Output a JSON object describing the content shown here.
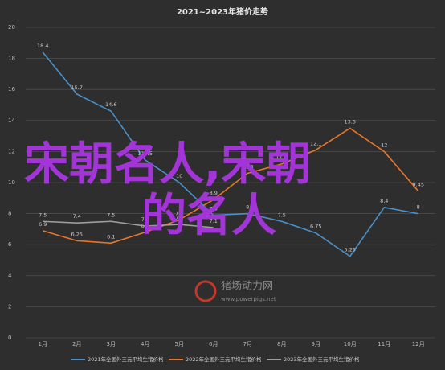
{
  "chart_data": {
    "type": "line",
    "title": "2021~2023年猪价走势",
    "categories": [
      "1月",
      "2月",
      "3月",
      "4月",
      "5月",
      "6月",
      "7月",
      "8月",
      "9月",
      "10月",
      "11月",
      "12月"
    ],
    "series": [
      {
        "name": "2021年全国外三元平均生猪价格",
        "color": "#4a90c8",
        "values": [
          18.4,
          15.7,
          14.6,
          11.45,
          10,
          7.9,
          8,
          7.5,
          6.75,
          5.25,
          8.4,
          8
        ]
      },
      {
        "name": "2022年全国外三元平均生猪价格",
        "color": "#e8772a",
        "values": [
          6.9,
          6.25,
          6.1,
          6.8,
          7.6,
          8.9,
          10.6,
          11.2,
          12.1,
          13.5,
          12,
          9.45
        ]
      },
      {
        "name": "2023年全国外三元平均生猪价格",
        "color": "#9e9e9e",
        "values": [
          7.5,
          7.4,
          7.5,
          7.2,
          7.3,
          7.1,
          null,
          null,
          null,
          null,
          null,
          null
        ]
      }
    ],
    "ylim": [
      0,
      20
    ],
    "yticks": [
      0,
      2,
      4,
      6,
      8,
      10,
      12,
      14,
      16,
      18,
      20
    ],
    "grid": true
  },
  "overlay": {
    "line1": "宋朝名人,宋朝",
    "line2": "的名人",
    "color": "#a335d8"
  },
  "watermark": {
    "name": "猪场动力网",
    "url": "www.powerpigs.net"
  }
}
